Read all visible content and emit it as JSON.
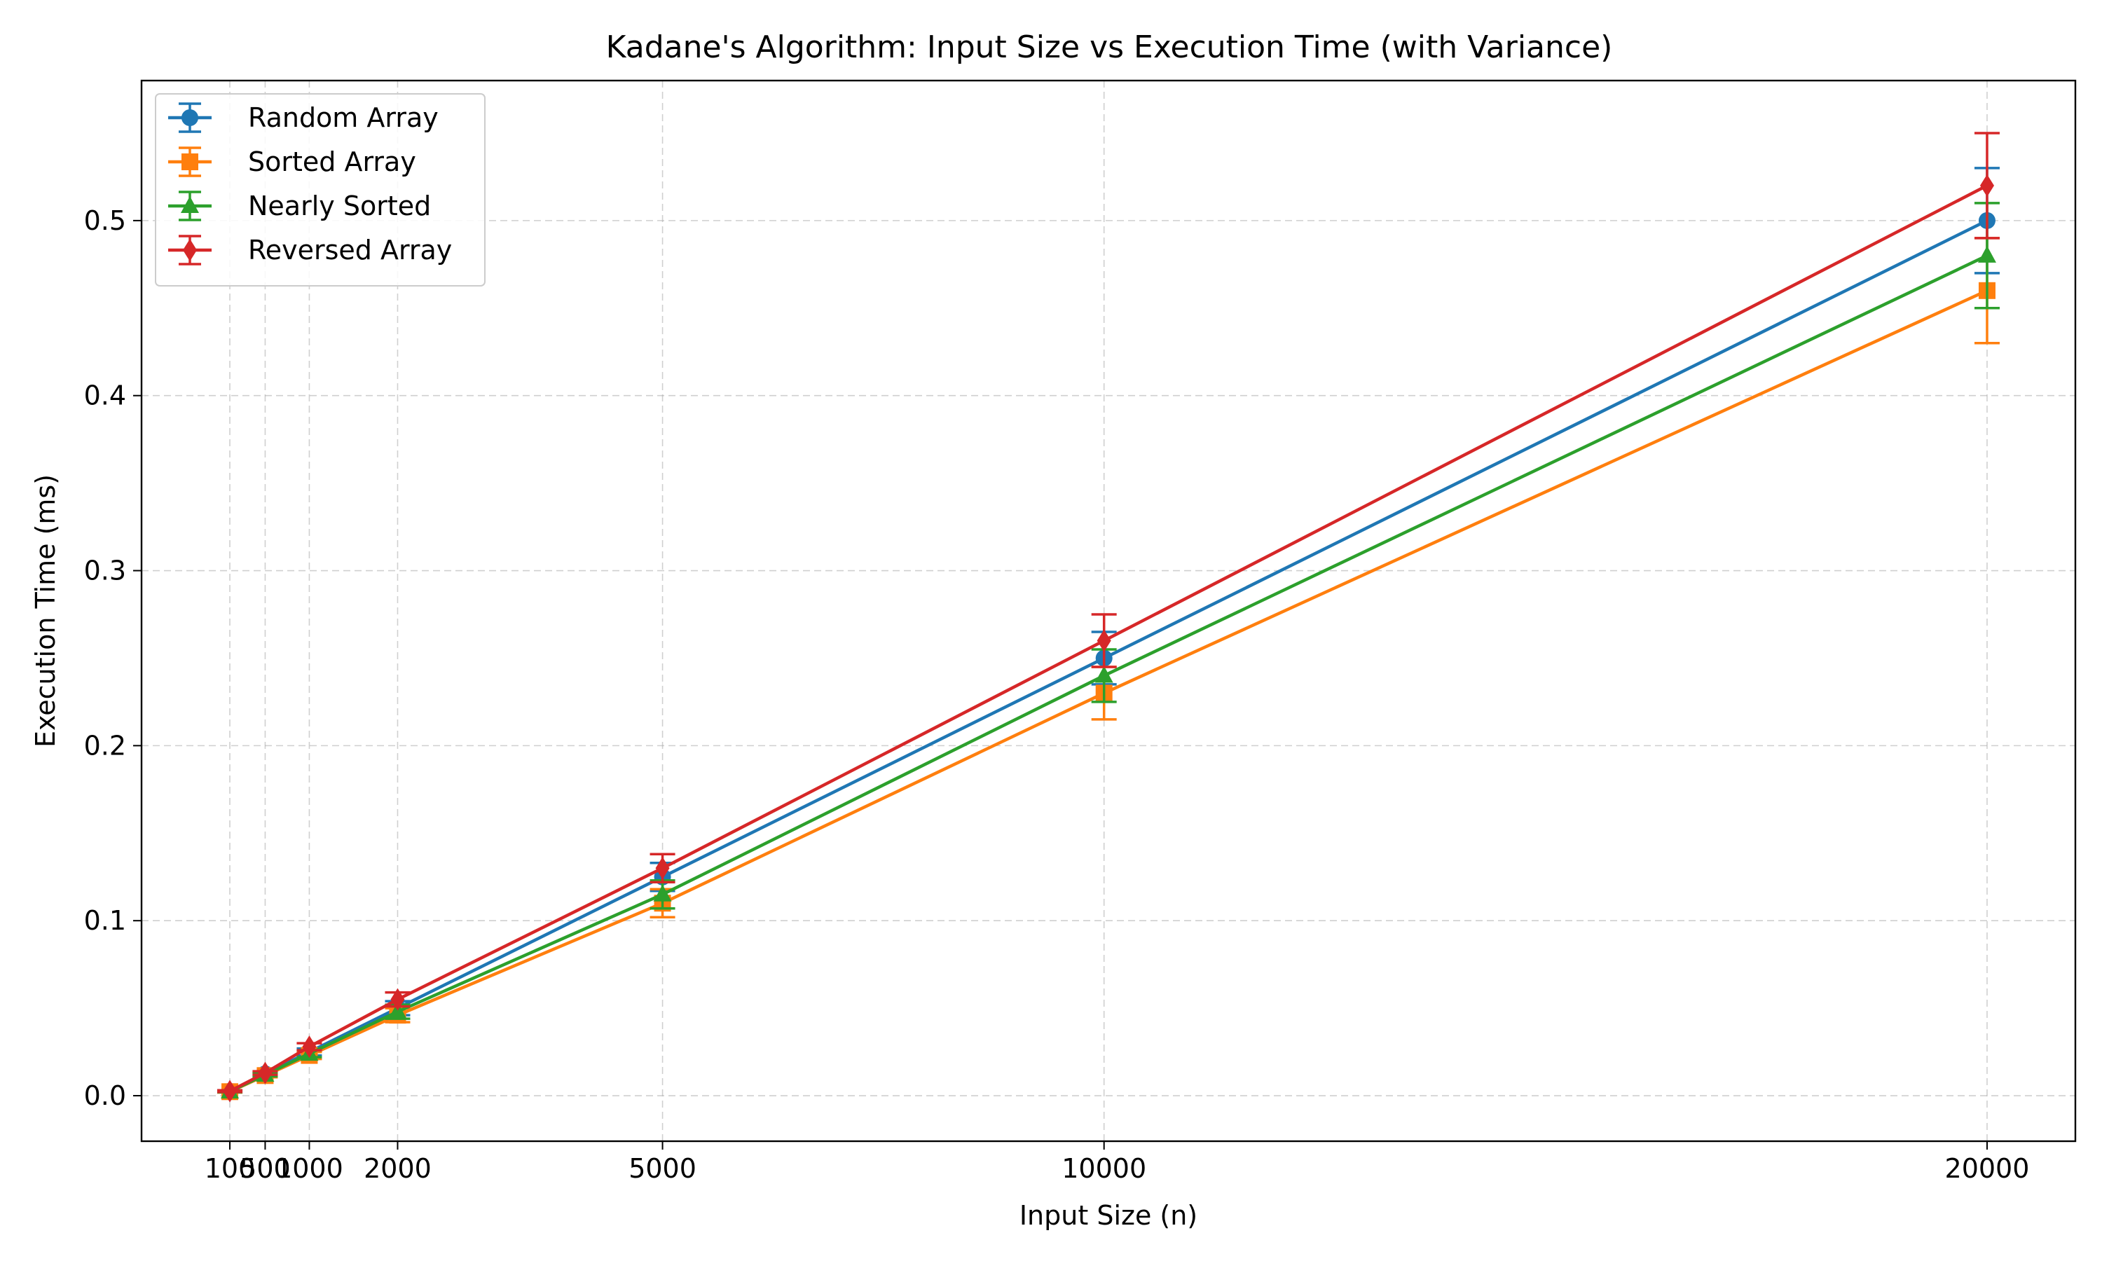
{
  "chart_data": {
    "type": "line",
    "title": "Kadane's Algorithm: Input Size vs Execution Time (with Variance)",
    "xlabel": "Input Size (n)",
    "ylabel": "Execution Time (ms)",
    "x": [
      100,
      500,
      1000,
      2000,
      5000,
      10000,
      20000
    ],
    "x_tick_labels": [
      "100",
      "500",
      "1000",
      "2000",
      "5000",
      "10000",
      "20000"
    ],
    "xlim": [
      -900,
      21000
    ],
    "ylim": [
      -0.026,
      0.58
    ],
    "y_ticks": [
      0.0,
      0.1,
      0.2,
      0.3,
      0.4,
      0.5
    ],
    "y_tick_labels": [
      "0.0",
      "0.1",
      "0.2",
      "0.3",
      "0.4",
      "0.5"
    ],
    "grid": true,
    "legend_position": "top-left",
    "series": [
      {
        "name": "Random Array",
        "color": "#1f77b4",
        "marker": "circle",
        "values": [
          0.0025,
          0.0125,
          0.025,
          0.05,
          0.125,
          0.25,
          0.5
        ],
        "errors": [
          0.0005,
          0.001,
          0.002,
          0.004,
          0.008,
          0.015,
          0.03
        ]
      },
      {
        "name": "Sorted Array",
        "color": "#ff7f0e",
        "marker": "square",
        "values": [
          0.0023,
          0.0115,
          0.023,
          0.046,
          0.11,
          0.23,
          0.46
        ],
        "errors": [
          0.0005,
          0.001,
          0.002,
          0.004,
          0.008,
          0.015,
          0.03
        ]
      },
      {
        "name": "Nearly Sorted",
        "color": "#2ca02c",
        "marker": "triangle",
        "values": [
          0.0024,
          0.012,
          0.024,
          0.048,
          0.115,
          0.24,
          0.48
        ],
        "errors": [
          0.0005,
          0.001,
          0.002,
          0.004,
          0.008,
          0.015,
          0.03
        ]
      },
      {
        "name": "Reversed Array",
        "color": "#d62728",
        "marker": "diamond",
        "values": [
          0.0026,
          0.013,
          0.028,
          0.055,
          0.13,
          0.26,
          0.52
        ],
        "errors": [
          0.0005,
          0.001,
          0.002,
          0.004,
          0.008,
          0.015,
          0.03
        ]
      }
    ]
  }
}
